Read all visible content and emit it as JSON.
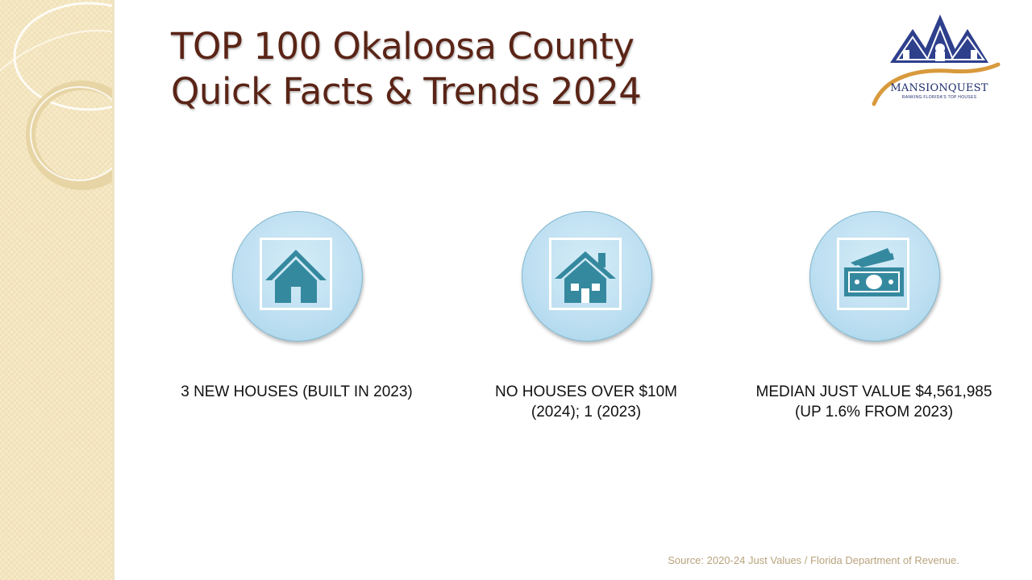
{
  "slide": {
    "title_line1": "TOP 100 Okaloosa County",
    "title_line2": "Quick Facts & Trends 2024"
  },
  "logo": {
    "name": "MANSIONQUEST",
    "tagline": "RANKING FLORIDA'S TOP HOUSES",
    "colors": {
      "navy": "#2e3f8c",
      "gold": "#d89a3c"
    }
  },
  "facts": [
    {
      "icon": "house-icon",
      "line1": "3 NEW HOUSES (BUILT IN 2023)",
      "line2": ""
    },
    {
      "icon": "house-with-chimney-icon",
      "line1": "NO HOUSES OVER $10M",
      "line2": "(2024); 1 (2023)"
    },
    {
      "icon": "money-icon",
      "line1": "MEDIAN JUST VALUE $4,561,985",
      "line2": "(UP 1.6% FROM 2023)"
    }
  ],
  "source": "Source: 2020-24 Just Values / Florida Department of Revenue.",
  "colors": {
    "title": "#5a2416",
    "icon_teal": "#35899f",
    "badge_fill": "#bfe0f2",
    "side_panel": "#f6e9c6"
  }
}
